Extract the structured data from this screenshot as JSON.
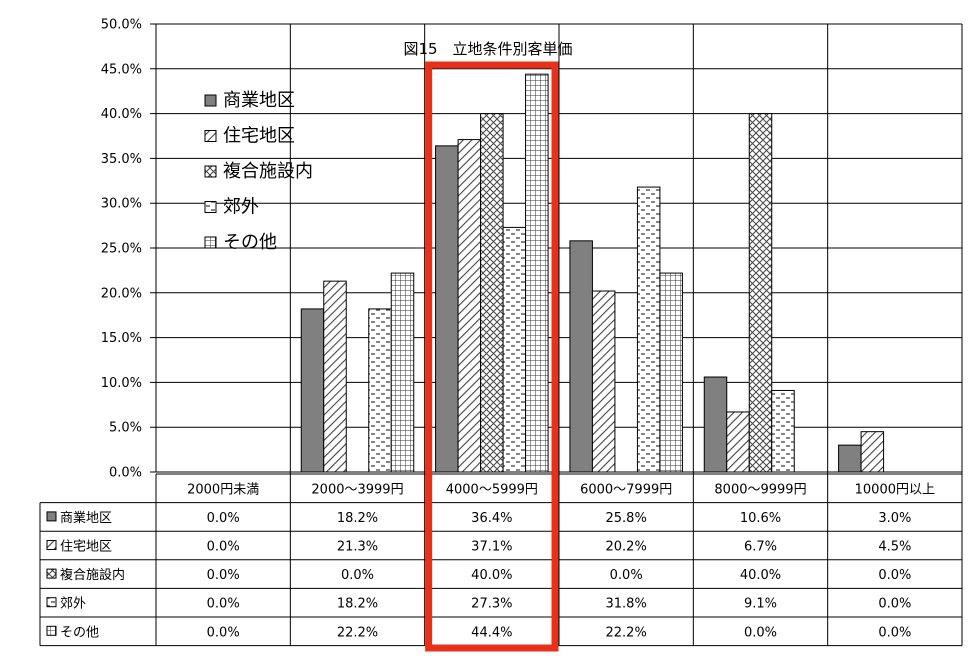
{
  "chart_data": {
    "type": "bar",
    "title": "図15　立地条件別客単価",
    "categories": [
      "2000円未満",
      "2000～3999円",
      "4000～5999円",
      "6000～7999円",
      "8000～9999円",
      "10000円以上"
    ],
    "ylim": [
      0,
      50
    ],
    "y_ticks": [
      "0.0%",
      "5.0%",
      "10.0%",
      "15.0%",
      "20.0%",
      "25.0%",
      "30.0%",
      "35.0%",
      "40.0%",
      "45.0%",
      "50.0%"
    ],
    "grid": "horizontal",
    "legend_position": "top-left",
    "series": [
      {
        "name": "商業地区",
        "pattern": "solid",
        "values": [
          0.0,
          18.2,
          36.4,
          25.8,
          10.6,
          3.0
        ],
        "labels": [
          "0.0%",
          "18.2%",
          "36.4%",
          "25.8%",
          "10.6%",
          "3.0%"
        ]
      },
      {
        "name": "住宅地区",
        "pattern": "diagonal",
        "values": [
          0.0,
          21.3,
          37.1,
          20.2,
          6.7,
          4.5
        ],
        "labels": [
          "0.0%",
          "21.3%",
          "37.1%",
          "20.2%",
          "6.7%",
          "4.5%"
        ]
      },
      {
        "name": "複合施設内",
        "pattern": "crosshatch",
        "values": [
          0.0,
          0.0,
          40.0,
          0.0,
          40.0,
          0.0
        ],
        "labels": [
          "0.0%",
          "0.0%",
          "40.0%",
          "0.0%",
          "40.0%",
          "0.0%"
        ]
      },
      {
        "name": "郊外",
        "pattern": "dashes",
        "values": [
          0.0,
          18.2,
          27.3,
          31.8,
          9.1,
          0.0
        ],
        "labels": [
          "0.0%",
          "18.2%",
          "27.3%",
          "31.8%",
          "9.1%",
          "0.0%"
        ]
      },
      {
        "name": "その他",
        "pattern": "grid",
        "values": [
          0.0,
          22.2,
          44.4,
          22.2,
          0.0,
          0.0
        ],
        "labels": [
          "0.0%",
          "22.2%",
          "44.4%",
          "22.2%",
          "0.0%",
          "0.0%"
        ]
      }
    ],
    "highlight": {
      "category": "4000～5999円",
      "color": "#e8311a"
    },
    "bar_color": "#808080"
  }
}
